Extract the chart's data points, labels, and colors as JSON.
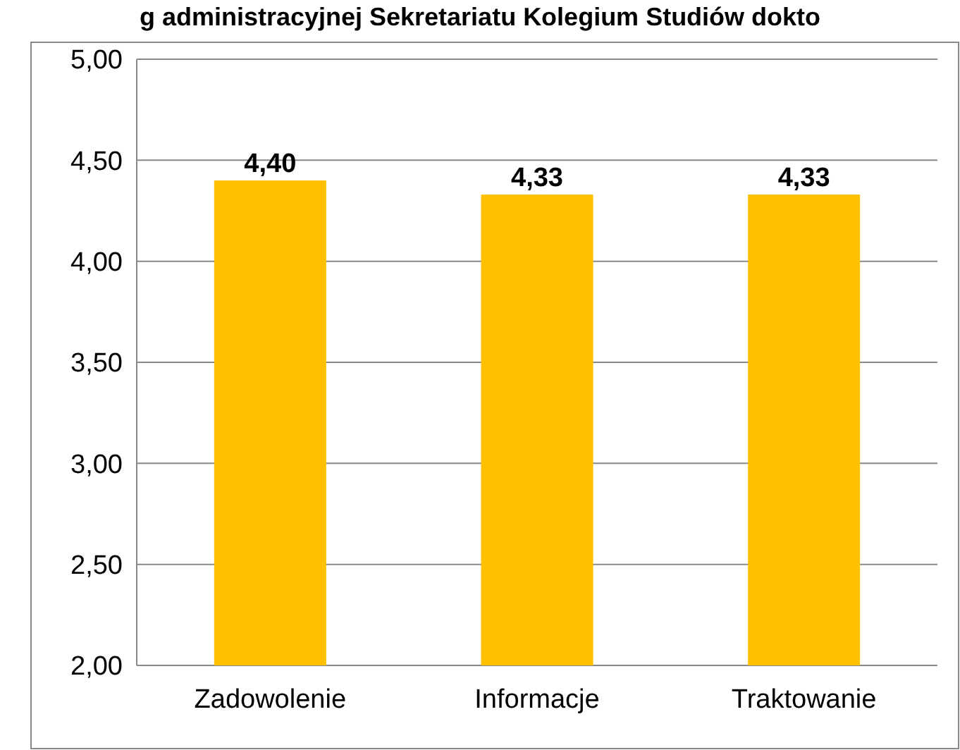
{
  "chart_data": {
    "type": "bar",
    "title": "g administracyjnej Sekretariatu Kolegium Studiów dokto",
    "categories": [
      "Zadowolenie",
      "Informacje",
      "Traktowanie"
    ],
    "values": [
      4.4,
      4.33,
      4.33
    ],
    "color": "#ffc000",
    "value_labels": [
      "4,40",
      "4,33",
      "4,33"
    ],
    "ylim": [
      2,
      5
    ],
    "yticks": [
      {
        "value": 2,
        "label": "2,00"
      },
      {
        "value": 2.5,
        "label": "2,50"
      },
      {
        "value": 3,
        "label": "3,00"
      },
      {
        "value": 3.5,
        "label": "3,50"
      },
      {
        "value": 4,
        "label": "4,00"
      },
      {
        "value": 4.5,
        "label": "4,50"
      },
      {
        "value": 5,
        "label": "5,00"
      }
    ],
    "grid": "y"
  }
}
